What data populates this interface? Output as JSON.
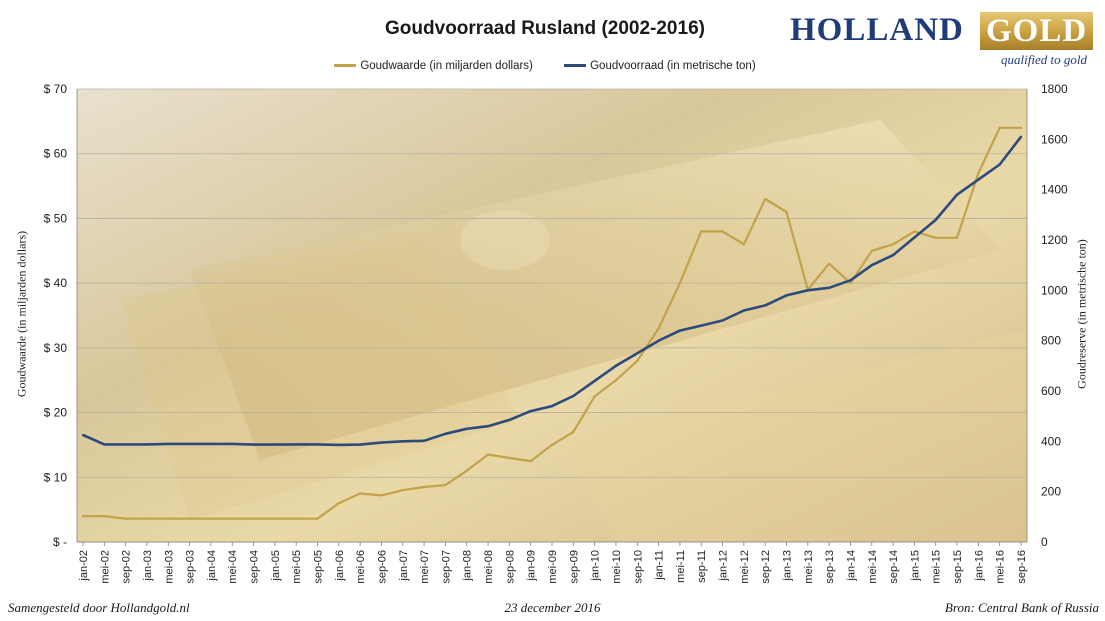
{
  "header": {
    "title": "Goudvoorraad Rusland (2002-2016)"
  },
  "logo": {
    "word1": "HOLLAND",
    "word2": "GOLD",
    "tagline": "qualified to gold"
  },
  "footer": {
    "left": "Samengesteld door Hollandgold.nl",
    "center": "23 december 2016",
    "right": "Bron: Central Bank of Russia"
  },
  "colors": {
    "gold_series": "#c2a24a",
    "reserve_series": "#2e4a7d",
    "grid": "#b8b0a0"
  },
  "chart_data": {
    "type": "line",
    "title": "Goudvoorraad Rusland (2002-2016)",
    "legend_position": "top",
    "grid": true,
    "x_tick_labels": [
      "jan-02",
      "mei-02",
      "sep-02",
      "jan-03",
      "mei-03",
      "sep-03",
      "jan-04",
      "mei-04",
      "sep-04",
      "jan-05",
      "mei-05",
      "sep-05",
      "jan-06",
      "mei-06",
      "sep-06",
      "jan-07",
      "mei-07",
      "sep-07",
      "jan-08",
      "mei-08",
      "sep-08",
      "jan-09",
      "mei-09",
      "sep-09",
      "jan-10",
      "mei-10",
      "sep-10",
      "jan-11",
      "mei-11",
      "sep-11",
      "jan-12",
      "mei-12",
      "sep-12",
      "jan-13",
      "mei-13",
      "sep-13",
      "jan-14",
      "mei-14",
      "sep-14",
      "jan-15",
      "mei-15",
      "sep-15",
      "jan-16",
      "mei-16",
      "sep-16"
    ],
    "y_left": {
      "label": "Goudwaarde  (in miljarden dollars)",
      "range": [
        0,
        70
      ],
      "ticks": [
        0,
        10,
        20,
        30,
        40,
        50,
        60,
        70
      ],
      "tick_labels": [
        "$ -",
        "$ 10",
        "$ 20",
        "$ 30",
        "$ 40",
        "$ 50",
        "$ 60",
        "$ 70"
      ]
    },
    "y_right": {
      "label": "Goudreserve  (in metrische ton)",
      "range": [
        0,
        1800
      ],
      "ticks": [
        0,
        200,
        400,
        600,
        800,
        1000,
        1200,
        1400,
        1600,
        1800
      ],
      "tick_labels": [
        "0",
        "200",
        "400",
        "600",
        "800",
        "1000",
        "1200",
        "1400",
        "1600",
        "1800"
      ]
    },
    "series": [
      {
        "name": "Goudwaarde (in miljarden dollars)",
        "axis": "left",
        "points": [
          [
            "jan-02",
            4.0
          ],
          [
            "mei-02",
            4.0
          ],
          [
            "sep-02",
            3.6
          ],
          [
            "jan-03",
            3.6
          ],
          [
            "mei-03",
            3.6
          ],
          [
            "sep-03",
            3.6
          ],
          [
            "jan-04",
            3.6
          ],
          [
            "mei-04",
            3.6
          ],
          [
            "sep-04",
            3.6
          ],
          [
            "jan-05",
            3.6
          ],
          [
            "mei-05",
            3.6
          ],
          [
            "sep-05",
            3.6
          ],
          [
            "jan-06",
            6.0
          ],
          [
            "mei-06",
            7.5
          ],
          [
            "sep-06",
            7.2
          ],
          [
            "jan-07",
            8.0
          ],
          [
            "mei-07",
            8.5
          ],
          [
            "sep-07",
            8.8
          ],
          [
            "jan-08",
            11.0
          ],
          [
            "mei-08",
            13.5
          ],
          [
            "sep-08",
            13.0
          ],
          [
            "jan-09",
            12.5
          ],
          [
            "mei-09",
            15.0
          ],
          [
            "sep-09",
            17.0
          ],
          [
            "jan-10",
            22.5
          ],
          [
            "mei-10",
            25.0
          ],
          [
            "sep-10",
            28.0
          ],
          [
            "jan-11",
            33.0
          ],
          [
            "mei-11",
            40.0
          ],
          [
            "sep-11",
            48.0
          ],
          [
            "jan-12",
            48.0
          ],
          [
            "mei-12",
            46.0
          ],
          [
            "sep-12",
            53.0
          ],
          [
            "jan-13",
            51.0
          ],
          [
            "mei-13",
            39.0
          ],
          [
            "sep-13",
            43.0
          ],
          [
            "jan-14",
            40.0
          ],
          [
            "mei-14",
            45.0
          ],
          [
            "sep-14",
            46.0
          ],
          [
            "jan-15",
            48.0
          ],
          [
            "mei-15",
            47.0
          ],
          [
            "sep-15",
            47.0
          ],
          [
            "jan-16",
            57.0
          ],
          [
            "mei-16",
            64.0
          ],
          [
            "sep-16",
            64.0
          ]
        ]
      },
      {
        "name": "Goudvoorraad (in metrische ton)",
        "axis": "right",
        "points": [
          [
            "jan-02",
            425
          ],
          [
            "mei-02",
            388
          ],
          [
            "sep-02",
            388
          ],
          [
            "jan-03",
            388
          ],
          [
            "mei-03",
            390
          ],
          [
            "sep-03",
            390
          ],
          [
            "jan-04",
            390
          ],
          [
            "mei-04",
            390
          ],
          [
            "sep-04",
            387
          ],
          [
            "jan-05",
            387
          ],
          [
            "mei-05",
            388
          ],
          [
            "sep-05",
            388
          ],
          [
            "jan-06",
            386
          ],
          [
            "mei-06",
            387
          ],
          [
            "sep-06",
            395
          ],
          [
            "jan-07",
            400
          ],
          [
            "mei-07",
            402
          ],
          [
            "sep-07",
            430
          ],
          [
            "jan-08",
            450
          ],
          [
            "mei-08",
            460
          ],
          [
            "sep-08",
            485
          ],
          [
            "jan-09",
            520
          ],
          [
            "mei-09",
            540
          ],
          [
            "sep-09",
            580
          ],
          [
            "jan-10",
            640
          ],
          [
            "mei-10",
            700
          ],
          [
            "sep-10",
            750
          ],
          [
            "jan-11",
            800
          ],
          [
            "mei-11",
            840
          ],
          [
            "sep-11",
            860
          ],
          [
            "jan-12",
            880
          ],
          [
            "mei-12",
            920
          ],
          [
            "sep-12",
            940
          ],
          [
            "jan-13",
            980
          ],
          [
            "mei-13",
            1000
          ],
          [
            "sep-13",
            1010
          ],
          [
            "jan-14",
            1040
          ],
          [
            "mei-14",
            1100
          ],
          [
            "sep-14",
            1140
          ],
          [
            "jan-15",
            1210
          ],
          [
            "mei-15",
            1280
          ],
          [
            "sep-15",
            1380
          ],
          [
            "jan-16",
            1440
          ],
          [
            "mei-16",
            1500
          ],
          [
            "sep-16",
            1610
          ]
        ]
      }
    ]
  }
}
